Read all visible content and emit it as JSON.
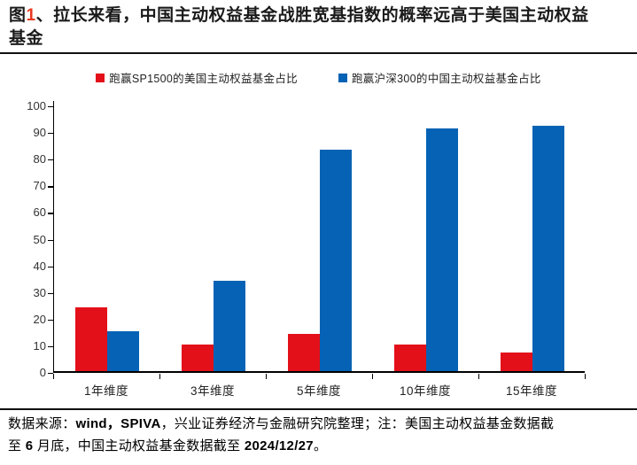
{
  "title": {
    "parts": {
      "prefix": "图",
      "number": "1",
      "rest": "、拉长来看，中国主动权益基金战胜宽基指数的概率远高于美国主动权益",
      "line2": "基金"
    },
    "number_color": "#e8391f"
  },
  "chart_data": {
    "type": "bar",
    "categories": [
      "1年维度",
      "3年维度",
      "5年维度",
      "10年维度",
      "15年维度"
    ],
    "series": [
      {
        "name": "跑赢SP1500的美国主动权益基金占比",
        "color": "#e31019",
        "values": [
          24,
          10,
          14,
          10,
          7
        ]
      },
      {
        "name": "跑赢沪深300的中国主动权益基金占比",
        "color": "#0562b4",
        "values": [
          15,
          34,
          83,
          91,
          92
        ]
      }
    ],
    "title": "图1、拉长来看，中国主动权益基金战胜宽基指数的概率远高于美国主动权益基金",
    "xlabel": "",
    "ylabel": "",
    "ylim": [
      0,
      100
    ],
    "ytick_step": 10,
    "grid": false,
    "legend_position": "top"
  },
  "footer": {
    "lines": [
      [
        {
          "text": "数据来源：",
          "bold": false
        },
        {
          "text": "wind，SPIVA",
          "bold": true
        },
        {
          "text": "，兴业证券经济与金融研究院整理；注：美国主动权益基金数据截",
          "bold": false
        }
      ],
      [
        {
          "text": "至 ",
          "bold": false
        },
        {
          "text": "6",
          "bold": true
        },
        {
          "text": " 月底，中国主动权益基金数据截至 ",
          "bold": false
        },
        {
          "text": "2024/12/27",
          "bold": true
        },
        {
          "text": "。",
          "bold": false
        }
      ]
    ]
  }
}
